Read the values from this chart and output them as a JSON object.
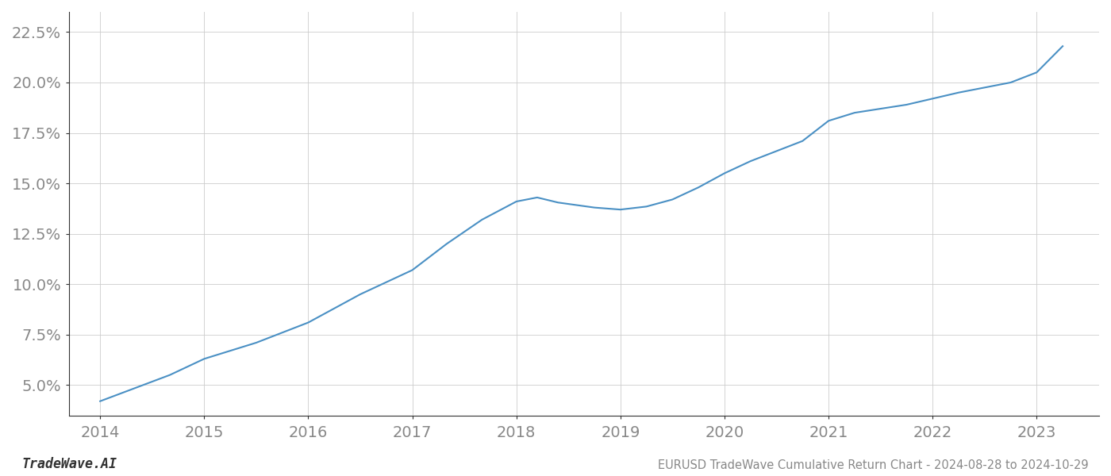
{
  "title": "EURUSD TradeWave Cumulative Return Chart - 2024-08-28 to 2024-10-29",
  "watermark": "TradeWave.AI",
  "line_color": "#4a90c4",
  "background_color": "#ffffff",
  "grid_color": "#cccccc",
  "x_values": [
    2014.0,
    2014.67,
    2015.0,
    2015.5,
    2016.0,
    2016.5,
    2017.0,
    2017.33,
    2017.67,
    2018.0,
    2018.2,
    2018.4,
    2018.75,
    2019.0,
    2019.25,
    2019.5,
    2019.75,
    2020.0,
    2020.25,
    2020.5,
    2020.75,
    2021.0,
    2021.25,
    2021.5,
    2021.75,
    2022.0,
    2022.25,
    2022.5,
    2022.75,
    2023.0,
    2023.25
  ],
  "y_values": [
    4.2,
    5.5,
    6.3,
    7.1,
    8.1,
    9.5,
    10.7,
    12.0,
    13.2,
    14.1,
    14.3,
    14.05,
    13.8,
    13.7,
    13.85,
    14.2,
    14.8,
    15.5,
    16.1,
    16.6,
    17.1,
    18.1,
    18.5,
    18.7,
    18.9,
    19.2,
    19.5,
    19.75,
    20.0,
    20.5,
    21.8
  ],
  "xlim": [
    2013.7,
    2023.6
  ],
  "ylim": [
    3.5,
    23.5
  ],
  "yticks": [
    5.0,
    7.5,
    10.0,
    12.5,
    15.0,
    17.5,
    20.0,
    22.5
  ],
  "xticks": [
    2014,
    2015,
    2016,
    2017,
    2018,
    2019,
    2020,
    2021,
    2022,
    2023
  ],
  "line_width": 1.5,
  "title_fontsize": 10.5,
  "tick_fontsize": 14,
  "watermark_fontsize": 12,
  "tick_color": "#888888",
  "spine_color": "#333333"
}
